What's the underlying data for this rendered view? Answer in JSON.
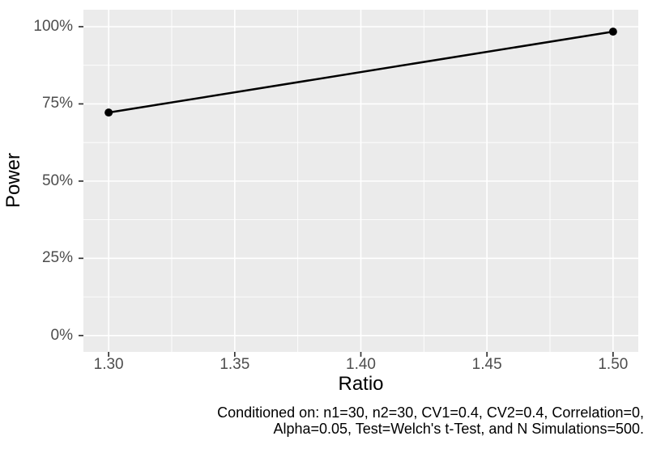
{
  "chart_data": {
    "type": "line",
    "title": "",
    "xlabel": "Ratio",
    "ylabel": "Power",
    "series": [
      {
        "name": "Power",
        "x": [
          1.3,
          1.5
        ],
        "y": [
          72.2,
          98.4
        ]
      }
    ],
    "xlim": [
      1.29,
      1.51
    ],
    "ylim": [
      -5.3,
      105.5
    ],
    "x_ticks": [
      1.3,
      1.35,
      1.4,
      1.45,
      1.5
    ],
    "x_tick_labels": [
      "1.30",
      "1.35",
      "1.40",
      "1.45",
      "1.50"
    ],
    "x_minor_ticks": [
      1.325,
      1.375,
      1.425,
      1.475
    ],
    "y_ticks": [
      0,
      25,
      50,
      75,
      100
    ],
    "y_tick_labels": [
      "0%",
      "25%",
      "50%",
      "75%",
      "100%"
    ],
    "y_minor_ticks": [
      12.5,
      37.5,
      62.5,
      87.5
    ],
    "grid": true,
    "legend": "none",
    "point_radius": 5,
    "line_width": 2.5
  },
  "caption": {
    "line1": "Conditioned on: n1=30, n2=30, CV1=0.4, CV2=0.4, Correlation=0,",
    "line2": "Alpha=0.05, Test=Welch's t-Test, and N Simulations=500."
  },
  "colors": {
    "page_bg": "#FFFFFF",
    "panel_bg": "#EBEBEB",
    "grid": "#FFFFFF",
    "series_line": "#000000",
    "point": "#000000",
    "tick_mark": "#333333",
    "tick_label": "#4D4D4D",
    "axis_title": "#000000",
    "caption_text": "#000000"
  }
}
